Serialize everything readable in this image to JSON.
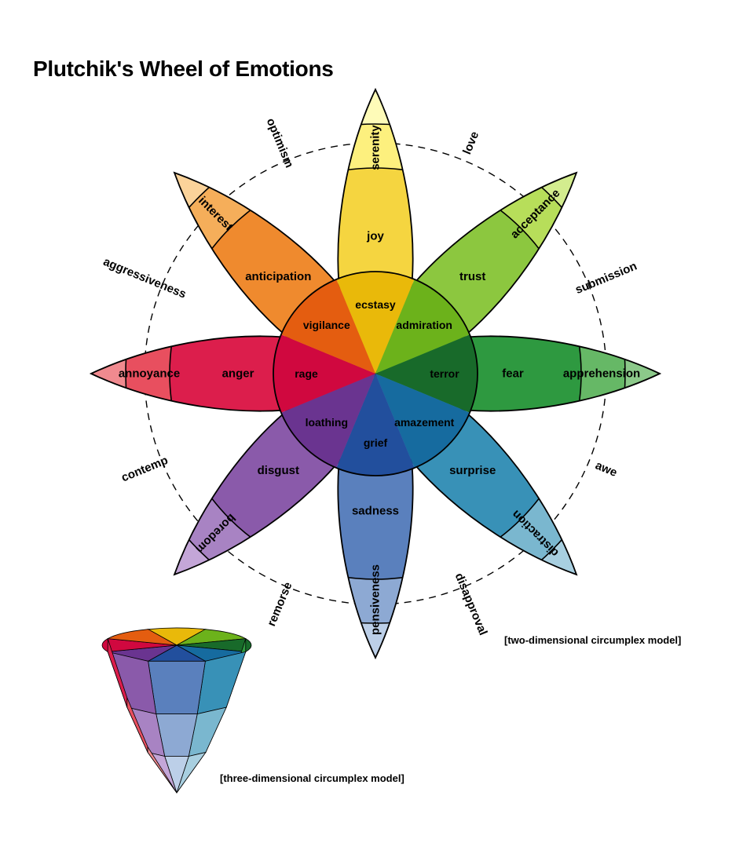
{
  "title": "Plutchik's Wheel of Emotions",
  "caption_2d": "[two-dimensional circumplex model]",
  "caption_3d": "[three-dimensional circumplex model]",
  "petals": [
    {
      "id": "joy",
      "inner": "ecstasy",
      "middle": "joy",
      "outer": "serenity",
      "colors": [
        "#e9b90a",
        "#f5d540",
        "#fdf07e",
        "#fefbb8"
      ]
    },
    {
      "id": "trust",
      "inner": "admiration",
      "middle": "trust",
      "outer": "acceptance",
      "colors": [
        "#6cb21b",
        "#8cc73f",
        "#b7de5a",
        "#d3ec8e"
      ]
    },
    {
      "id": "fear",
      "inner": "terror",
      "middle": "fear",
      "outer": "apprehension",
      "colors": [
        "#186a2a",
        "#2e9940",
        "#66b866",
        "#8cc98a"
      ]
    },
    {
      "id": "surprise",
      "inner": "amazement",
      "middle": "surprise",
      "outer": "distraction",
      "colors": [
        "#166b9f",
        "#3891b7",
        "#7ab7cf",
        "#a8cfe0"
      ]
    },
    {
      "id": "sadness",
      "inner": "grief",
      "middle": "sadness",
      "outer": "pensiveness",
      "colors": [
        "#224f9d",
        "#5a80bd",
        "#8da9d3",
        "#bccfe8"
      ]
    },
    {
      "id": "disgust",
      "inner": "loathing",
      "middle": "disgust",
      "outer": "boredom",
      "colors": [
        "#6a3490",
        "#8a5aaa",
        "#a883c3",
        "#c4a6d8"
      ]
    },
    {
      "id": "anger",
      "inner": "rage",
      "middle": "anger",
      "outer": "annoyance",
      "colors": [
        "#d0083f",
        "#dc1e4c",
        "#e84f5f",
        "#f08a8f"
      ]
    },
    {
      "id": "anticipation",
      "inner": "vigilance",
      "middle": "anticipation",
      "outer": "interest",
      "colors": [
        "#e45d10",
        "#ef8a2e",
        "#f5ae5a",
        "#fbd39a"
      ]
    }
  ],
  "dyads": [
    "love",
    "submission",
    "awe",
    "disapproval",
    "remorse",
    "contemp",
    "aggressiveness",
    "optimism"
  ]
}
